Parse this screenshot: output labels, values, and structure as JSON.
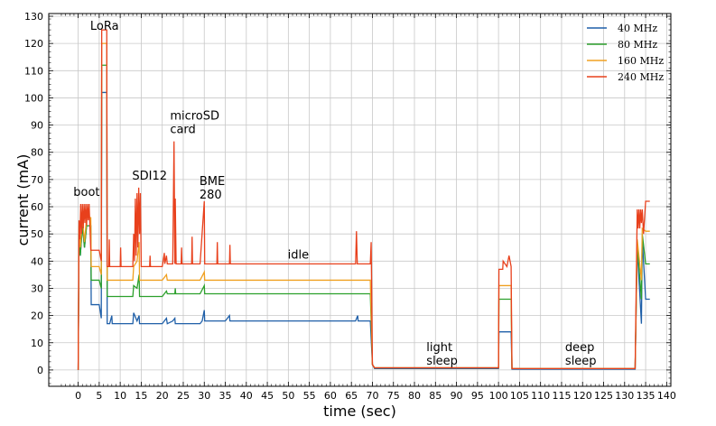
{
  "chart_data": {
    "type": "line",
    "xlabel": "time (sec)",
    "ylabel": "current (mA)",
    "xlim": [
      -7,
      141
    ],
    "ylim": [
      -6,
      131
    ],
    "xticks": [
      0,
      5,
      10,
      15,
      20,
      25,
      30,
      35,
      40,
      45,
      50,
      55,
      60,
      65,
      70,
      75,
      80,
      85,
      90,
      95,
      100,
      105,
      110,
      115,
      120,
      125,
      130,
      135,
      140
    ],
    "yticks": [
      0,
      10,
      20,
      30,
      40,
      50,
      60,
      70,
      80,
      90,
      100,
      110,
      120,
      130
    ],
    "grid": true,
    "legend_position": "top-right",
    "annotations": [
      {
        "text": "boot",
        "x": 1,
        "y": 64
      },
      {
        "text": "LoRa",
        "x": 5,
        "y": 125
      },
      {
        "text": "SDI12",
        "x": 15,
        "y": 70
      },
      {
        "text": "microSD\ncard",
        "x": 24,
        "y": 87
      },
      {
        "text": "BME\n280",
        "x": 31,
        "y": 63
      },
      {
        "text": "idle",
        "x": 52,
        "y": 41
      },
      {
        "text": "light\nsleep",
        "x": 85,
        "y": 2
      },
      {
        "text": "deep\nsleep",
        "x": 118,
        "y": 2
      }
    ],
    "series": [
      {
        "name": "40 MHz",
        "color": "#1f5fa8",
        "points": [
          [
            0,
            0
          ],
          [
            0.2,
            50
          ],
          [
            0.5,
            42
          ],
          [
            1,
            53
          ],
          [
            1.5,
            45
          ],
          [
            2,
            53
          ],
          [
            3,
            53
          ],
          [
            3.1,
            24
          ],
          [
            5,
            24
          ],
          [
            5.5,
            19
          ],
          [
            5.6,
            102
          ],
          [
            6.8,
            102
          ],
          [
            6.9,
            17
          ],
          [
            7.5,
            17
          ],
          [
            8,
            20
          ],
          [
            8.1,
            17
          ],
          [
            13,
            17
          ],
          [
            13.2,
            21
          ],
          [
            14,
            18
          ],
          [
            14.5,
            20
          ],
          [
            14.6,
            17
          ],
          [
            20,
            17
          ],
          [
            21,
            19
          ],
          [
            21.2,
            17
          ],
          [
            22.5,
            18
          ],
          [
            23,
            19
          ],
          [
            23.1,
            17
          ],
          [
            29,
            17
          ],
          [
            29.5,
            18
          ],
          [
            30,
            22
          ],
          [
            30.1,
            18
          ],
          [
            35,
            18
          ],
          [
            36,
            20
          ],
          [
            36.1,
            18
          ],
          [
            66,
            18
          ],
          [
            66.5,
            20
          ],
          [
            66.6,
            18
          ],
          [
            69.5,
            18
          ],
          [
            70,
            2
          ],
          [
            70.5,
            0.5
          ],
          [
            100,
            0.5
          ],
          [
            100.1,
            14
          ],
          [
            103,
            14
          ],
          [
            103.2,
            0.3
          ],
          [
            132.5,
            0.3
          ],
          [
            133,
            45
          ],
          [
            134,
            17
          ],
          [
            134.2,
            48
          ],
          [
            135,
            26
          ],
          [
            136,
            26
          ]
        ]
      },
      {
        "name": "80 MHz",
        "color": "#2ca02c",
        "points": [
          [
            0,
            0
          ],
          [
            0.2,
            50
          ],
          [
            0.5,
            42
          ],
          [
            1,
            53
          ],
          [
            1.5,
            45
          ],
          [
            2,
            53
          ],
          [
            3,
            53
          ],
          [
            3.1,
            33
          ],
          [
            5,
            33
          ],
          [
            5.5,
            30
          ],
          [
            5.6,
            112
          ],
          [
            6.8,
            112
          ],
          [
            6.9,
            27
          ],
          [
            13,
            27
          ],
          [
            13.2,
            31
          ],
          [
            14,
            30
          ],
          [
            14.5,
            35
          ],
          [
            14.6,
            27
          ],
          [
            20,
            27
          ],
          [
            21,
            29
          ],
          [
            21.2,
            28
          ],
          [
            23,
            28
          ],
          [
            23.1,
            30
          ],
          [
            23.2,
            28
          ],
          [
            29,
            28
          ],
          [
            30,
            31
          ],
          [
            30.1,
            28
          ],
          [
            69.5,
            28
          ],
          [
            70,
            2
          ],
          [
            70.5,
            0.8
          ],
          [
            100,
            0.8
          ],
          [
            100.1,
            26
          ],
          [
            103,
            26
          ],
          [
            103.2,
            0.5
          ],
          [
            132.5,
            0.5
          ],
          [
            133,
            46
          ],
          [
            134,
            26
          ],
          [
            134.2,
            50
          ],
          [
            135,
            39
          ],
          [
            136,
            39
          ]
        ]
      },
      {
        "name": "160 MHz",
        "color": "#f0a020",
        "points": [
          [
            0,
            0
          ],
          [
            0.2,
            53
          ],
          [
            0.5,
            45
          ],
          [
            1,
            56
          ],
          [
            1.5,
            47
          ],
          [
            2,
            56
          ],
          [
            3,
            56
          ],
          [
            3.1,
            38
          ],
          [
            5,
            38
          ],
          [
            5.5,
            35
          ],
          [
            5.6,
            120
          ],
          [
            6.8,
            120
          ],
          [
            6.9,
            33
          ],
          [
            13,
            33
          ],
          [
            13.2,
            38
          ],
          [
            14,
            40
          ],
          [
            14.5,
            47
          ],
          [
            14.6,
            33
          ],
          [
            20,
            33
          ],
          [
            21,
            35
          ],
          [
            21.2,
            33
          ],
          [
            29,
            33
          ],
          [
            30,
            36
          ],
          [
            30.1,
            33
          ],
          [
            69.5,
            33
          ],
          [
            70,
            2
          ],
          [
            70.5,
            0.8
          ],
          [
            100,
            0.8
          ],
          [
            100.1,
            31
          ],
          [
            103,
            31
          ],
          [
            103.2,
            0.5
          ],
          [
            132.5,
            0.5
          ],
          [
            133,
            48
          ],
          [
            134,
            33
          ],
          [
            134.2,
            52
          ],
          [
            135,
            51
          ],
          [
            136,
            51
          ]
        ]
      },
      {
        "name": "240 MHz",
        "color": "#e8401c",
        "points": [
          [
            0,
            0
          ],
          [
            0.2,
            55
          ],
          [
            0.4,
            48
          ],
          [
            0.6,
            61
          ],
          [
            0.8,
            50
          ],
          [
            1,
            61
          ],
          [
            1.2,
            52
          ],
          [
            1.4,
            61
          ],
          [
            1.6,
            54
          ],
          [
            1.8,
            61
          ],
          [
            2,
            53
          ],
          [
            2.2,
            61
          ],
          [
            2.4,
            55
          ],
          [
            2.6,
            61
          ],
          [
            3,
            44
          ],
          [
            5,
            44
          ],
          [
            5.5,
            40
          ],
          [
            5.6,
            125
          ],
          [
            6.8,
            125
          ],
          [
            6.9,
            38
          ],
          [
            7.3,
            38
          ],
          [
            7.4,
            48
          ],
          [
            7.5,
            38
          ],
          [
            10,
            38
          ],
          [
            10.1,
            45
          ],
          [
            10.2,
            38
          ],
          [
            13,
            38
          ],
          [
            13.2,
            50
          ],
          [
            13.4,
            40
          ],
          [
            13.6,
            63
          ],
          [
            13.8,
            42
          ],
          [
            14,
            65
          ],
          [
            14.2,
            45
          ],
          [
            14.4,
            67
          ],
          [
            14.6,
            50
          ],
          [
            14.8,
            65
          ],
          [
            15,
            38
          ],
          [
            17,
            38
          ],
          [
            17.1,
            42
          ],
          [
            17.2,
            38
          ],
          [
            20,
            38
          ],
          [
            20.5,
            43
          ],
          [
            20.6,
            39
          ],
          [
            21,
            42
          ],
          [
            21.2,
            39
          ],
          [
            22.5,
            39
          ],
          [
            22.8,
            84
          ],
          [
            23,
            39
          ],
          [
            23.1,
            63
          ],
          [
            23.3,
            39
          ],
          [
            24.5,
            39
          ],
          [
            24.6,
            45
          ],
          [
            24.7,
            39
          ],
          [
            27,
            39
          ],
          [
            27.1,
            49
          ],
          [
            27.2,
            39
          ],
          [
            29,
            39
          ],
          [
            30,
            62
          ],
          [
            30.1,
            39
          ],
          [
            33,
            39
          ],
          [
            33.1,
            47
          ],
          [
            33.2,
            39
          ],
          [
            36,
            39
          ],
          [
            36.1,
            46
          ],
          [
            36.2,
            39
          ],
          [
            66,
            39
          ],
          [
            66.2,
            51
          ],
          [
            66.4,
            39
          ],
          [
            69.5,
            39
          ],
          [
            69.7,
            47
          ],
          [
            70,
            2
          ],
          [
            70.5,
            0.8
          ],
          [
            100,
            0.8
          ],
          [
            100.1,
            37
          ],
          [
            101,
            37
          ],
          [
            101.1,
            40
          ],
          [
            102,
            38
          ],
          [
            102.5,
            42
          ],
          [
            103,
            38
          ],
          [
            103.2,
            0.5
          ],
          [
            132.5,
            0.5
          ],
          [
            133,
            59
          ],
          [
            133.2,
            52
          ],
          [
            133.4,
            59
          ],
          [
            133.6,
            52
          ],
          [
            133.8,
            59
          ],
          [
            134,
            54
          ],
          [
            134.2,
            59
          ],
          [
            134.5,
            50
          ],
          [
            135,
            62
          ],
          [
            136,
            62
          ]
        ]
      }
    ]
  }
}
